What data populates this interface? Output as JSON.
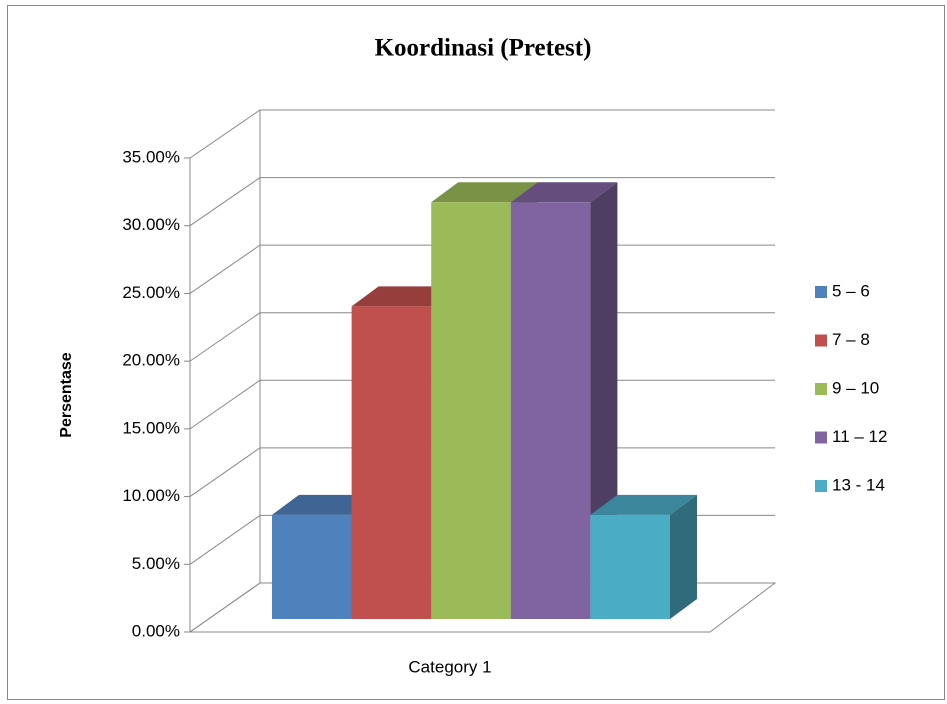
{
  "chart_data": {
    "type": "bar3d",
    "title": "Koordinasi (Pretest)",
    "y_label": "Persentase",
    "categories": [
      "Category 1"
    ],
    "series": [
      {
        "name": "5 – 6",
        "color": "#4f81bd",
        "values": [
          7.69
        ]
      },
      {
        "name": "7 – 8",
        "color": "#c0504d",
        "values": [
          23.08
        ]
      },
      {
        "name": "9 – 10",
        "color": "#9bbb59",
        "values": [
          30.77
        ]
      },
      {
        "name": "11 – 12",
        "color": "#8064a2",
        "values": [
          30.77
        ]
      },
      {
        "name": "13 - 14",
        "color": "#4bacc6",
        "values": [
          7.69
        ]
      }
    ],
    "ylim": [
      0,
      35
    ],
    "yticks": [
      {
        "value": 0,
        "label": "0.00%"
      },
      {
        "value": 5,
        "label": "5.00%"
      },
      {
        "value": 10,
        "label": "10.00%"
      },
      {
        "value": 15,
        "label": "15.00%"
      },
      {
        "value": 20,
        "label": "20.00%"
      },
      {
        "value": 25,
        "label": "25.00%"
      },
      {
        "value": 30,
        "label": "30.00%"
      },
      {
        "value": 35,
        "label": "35.00%"
      }
    ],
    "grid": true,
    "legend": "right"
  }
}
